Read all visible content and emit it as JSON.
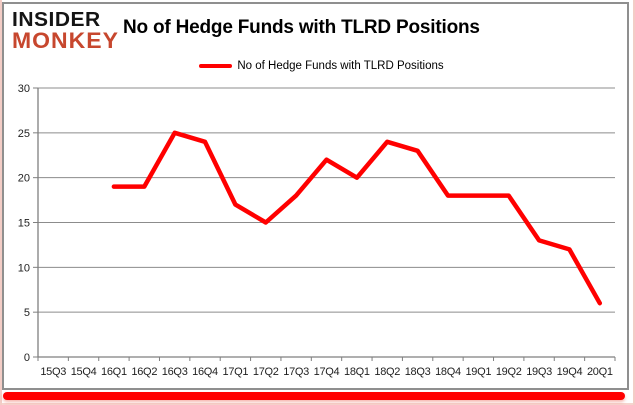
{
  "logo": {
    "line1": "INSIDER",
    "line2": "MONKEY"
  },
  "title": "No of Hedge Funds with TLRD Positions",
  "legend": {
    "label": "No of Hedge Funds with TLRD Positions",
    "color": "#ff0000"
  },
  "colors": {
    "line": "#ff0000",
    "grid": "#8c8c8c",
    "axis": "#7f7f7f",
    "label": "#1f1f1f",
    "frame_border": "#8f8f8f",
    "footer_bar": "#ff0000",
    "logo_black": "#141414",
    "logo_red": "#c7472e"
  },
  "chart_data": {
    "type": "line",
    "title": "No of Hedge Funds with TLRD Positions",
    "xlabel": "",
    "ylabel": "",
    "ylim": [
      0,
      30
    ],
    "yticks": [
      0,
      5,
      10,
      15,
      20,
      25,
      30
    ],
    "grid": "horizontal",
    "legend_position": "top",
    "categories": [
      "15Q3",
      "15Q4",
      "16Q1",
      "16Q2",
      "16Q3",
      "16Q4",
      "17Q1",
      "17Q2",
      "17Q3",
      "17Q4",
      "18Q1",
      "18Q2",
      "18Q3",
      "18Q4",
      "19Q1",
      "19Q2",
      "19Q3",
      "19Q4",
      "20Q1"
    ],
    "series": [
      {
        "name": "No of Hedge Funds with TLRD Positions",
        "color": "#ff0000",
        "values": [
          null,
          null,
          19,
          19,
          25,
          24,
          17,
          15,
          18,
          22,
          20,
          24,
          23,
          18,
          18,
          18,
          13,
          12,
          6
        ]
      }
    ]
  }
}
